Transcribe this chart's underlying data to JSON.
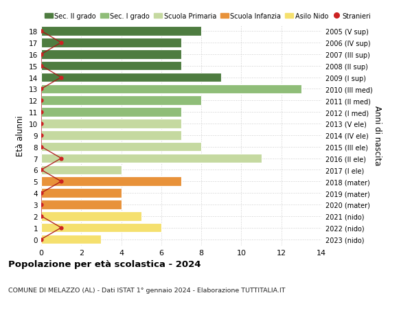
{
  "ages": [
    0,
    1,
    2,
    3,
    4,
    5,
    6,
    7,
    8,
    9,
    10,
    11,
    12,
    13,
    14,
    15,
    16,
    17,
    18
  ],
  "right_labels": [
    "2023 (nido)",
    "2022 (nido)",
    "2021 (nido)",
    "2020 (mater)",
    "2019 (mater)",
    "2018 (mater)",
    "2017 (I ele)",
    "2016 (II ele)",
    "2015 (III ele)",
    "2014 (IV ele)",
    "2013 (V ele)",
    "2012 (I med)",
    "2011 (II med)",
    "2010 (III med)",
    "2009 (I sup)",
    "2008 (II sup)",
    "2007 (III sup)",
    "2006 (IV sup)",
    "2005 (V sup)"
  ],
  "bar_values": [
    3,
    6,
    5,
    4,
    4,
    7,
    4,
    11,
    8,
    7,
    7,
    7,
    8,
    13,
    9,
    7,
    7,
    7,
    8
  ],
  "bar_colors": [
    "#f5e06e",
    "#f5e06e",
    "#f5e06e",
    "#e8923a",
    "#e8923a",
    "#e8923a",
    "#c5d9a0",
    "#c5d9a0",
    "#c5d9a0",
    "#c5d9a0",
    "#c5d9a0",
    "#8fbd78",
    "#8fbd78",
    "#8fbd78",
    "#4e7c40",
    "#4e7c40",
    "#4e7c40",
    "#4e7c40",
    "#4e7c40"
  ],
  "stranieri_values": [
    0,
    1,
    0,
    0,
    0,
    1,
    0,
    1,
    0,
    0,
    0,
    0,
    0,
    0,
    1,
    0,
    0,
    1,
    0
  ],
  "legend_labels": [
    "Sec. II grado",
    "Sec. I grado",
    "Scuola Primaria",
    "Scuola Infanzia",
    "Asilo Nido",
    "Stranieri"
  ],
  "legend_colors": [
    "#4e7c40",
    "#8fbd78",
    "#c5d9a0",
    "#e8923a",
    "#f5e06e",
    "#cc2222"
  ],
  "ylabel": "Età alunni",
  "right_ylabel": "Anni di nascita",
  "title": "Popolazione per età scolastica - 2024",
  "subtitle": "COMUNE DI MELAZZO (AL) - Dati ISTAT 1° gennaio 2024 - Elaborazione TUTTITALIA.IT",
  "xlim": [
    0,
    14
  ],
  "background_color": "#ffffff",
  "grid_color": "#cccccc"
}
